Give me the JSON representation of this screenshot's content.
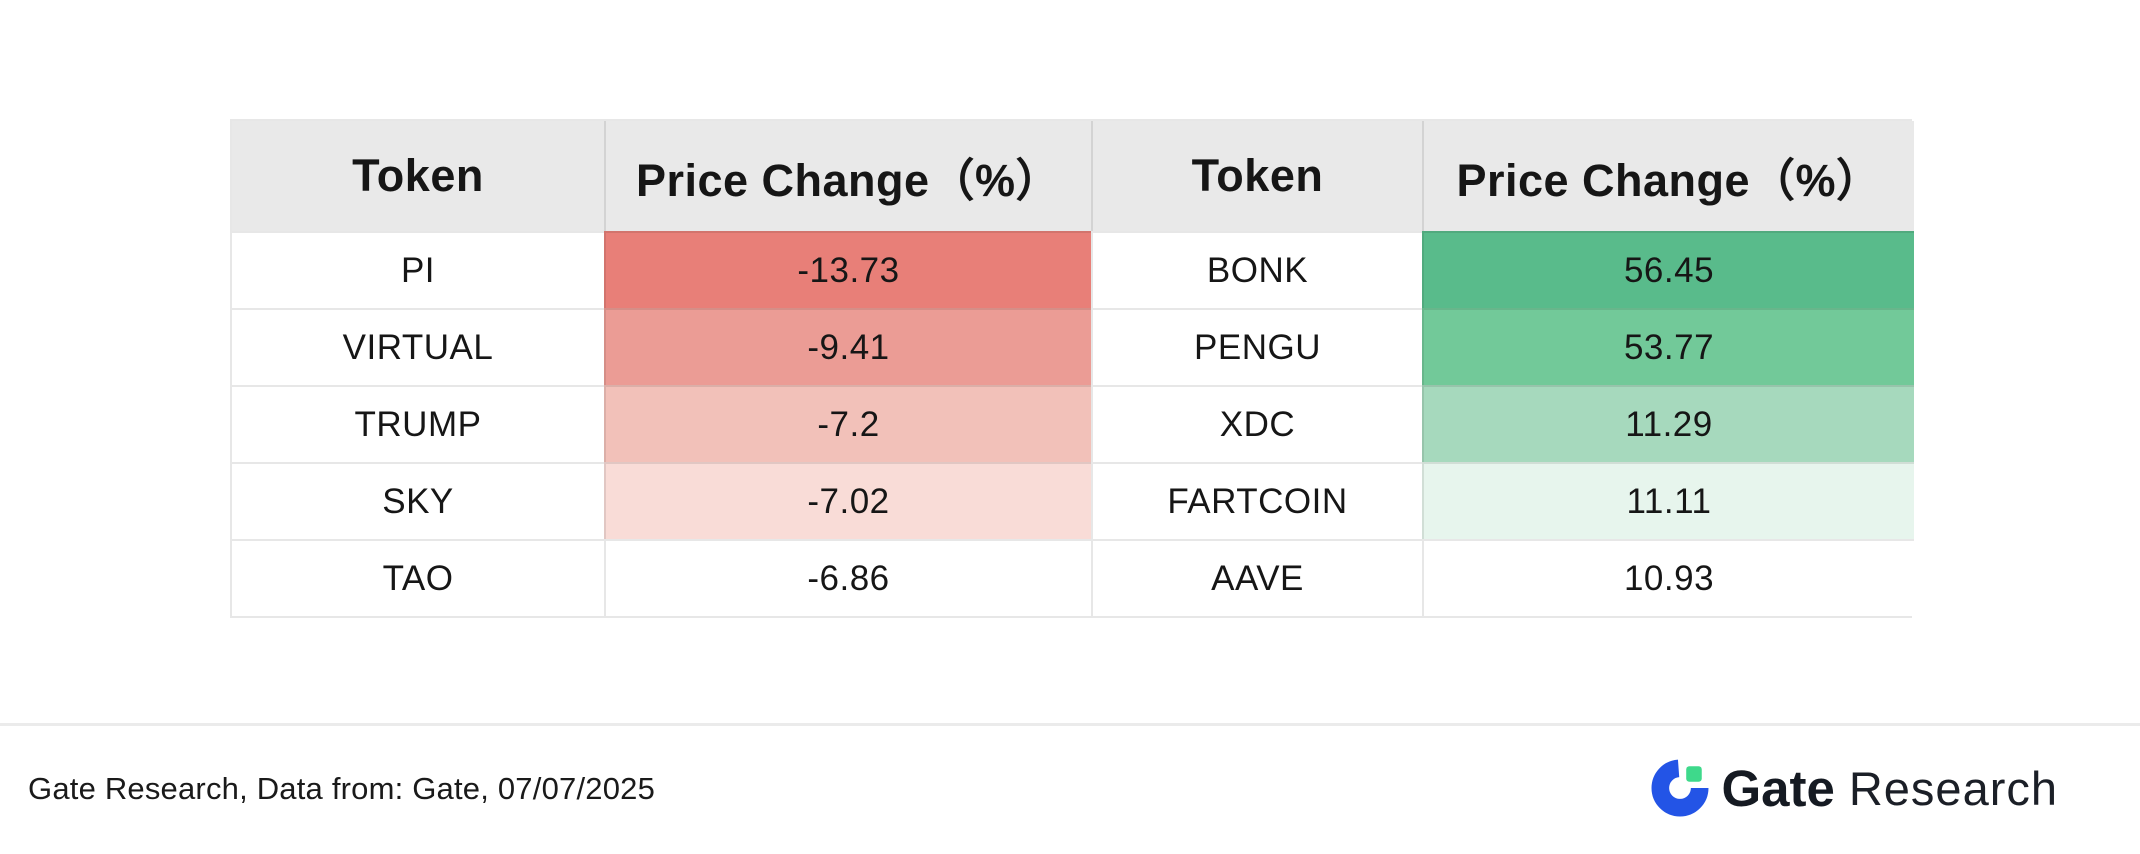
{
  "table": {
    "header_bg": "#e9e9e9",
    "headers": [
      {
        "label": "Token"
      },
      {
        "label": "Price Change（%）"
      },
      {
        "label": "Token"
      },
      {
        "label": "Price Change（%）"
      }
    ],
    "rows": [
      {
        "left_token": "PI",
        "left_change": "-13.73",
        "left_bg": "#e87f78",
        "right_token": "BONK",
        "right_change": "56.45",
        "right_bg": "#59bb8b"
      },
      {
        "left_token": "VIRTUAL",
        "left_change": "-9.41",
        "left_bg": "#eb9c95",
        "right_token": "PENGU",
        "right_change": "53.77",
        "right_bg": "#72c999"
      },
      {
        "left_token": "TRUMP",
        "left_change": "-7.2",
        "left_bg": "#f2c1b9",
        "right_token": "XDC",
        "right_change": "11.29",
        "right_bg": "#a6d9bd"
      },
      {
        "left_token": "SKY",
        "left_change": "-7.02",
        "left_bg": "#f9dcd7",
        "right_token": "FARTCOIN",
        "right_change": "11.11",
        "right_bg": "#e7f5ed"
      },
      {
        "left_token": "TAO",
        "left_change": "-6.86",
        "left_bg": "#ffffff",
        "right_token": "AAVE",
        "right_change": "10.93",
        "right_bg": "#ffffff"
      }
    ]
  },
  "footer": {
    "source_note": "Gate Research, Data from: Gate, 07/07/2025",
    "logo": {
      "brand": "Gate",
      "suffix": "Research",
      "icon_blue": "#2354e6",
      "icon_green": "#3ed98b"
    }
  },
  "chart_data": {
    "type": "table",
    "columns": [
      "Token",
      "Price Change（%）",
      "Token",
      "Price Change（%）"
    ],
    "rows": [
      [
        "PI",
        -13.73,
        "BONK",
        56.45
      ],
      [
        "VIRTUAL",
        -9.41,
        "PENGU",
        53.77
      ],
      [
        "TRUMP",
        -7.2,
        "XDC",
        11.29
      ],
      [
        "SKY",
        -7.02,
        "FARTCOIN",
        11.11
      ],
      [
        "TAO",
        -6.86,
        "AAVE",
        10.93
      ]
    ],
    "title": "",
    "note": "Gate Research, Data from: Gate, 07/07/2025",
    "layout_hints": "left pair = top losers (red shading by magnitude), right pair = top gainers (green shading by magnitude); header row gray"
  }
}
